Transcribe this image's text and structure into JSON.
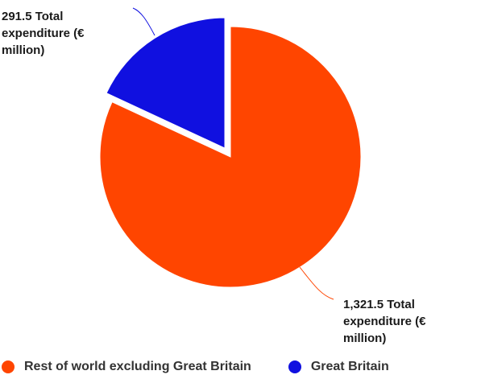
{
  "chart_data": {
    "type": "pie",
    "slices": [
      {
        "name": "Rest of world excluding Great Britain",
        "value": 1321.5,
        "label": "1,321.5 Total\nexpenditure (€\nmillion)",
        "color": "#ff4500"
      },
      {
        "name": "Great Britain",
        "value": 291.5,
        "label": "291.5 Total\nexpenditure (€\nmillion)",
        "color": "#1010e0"
      }
    ],
    "legend_position": "bottom"
  }
}
